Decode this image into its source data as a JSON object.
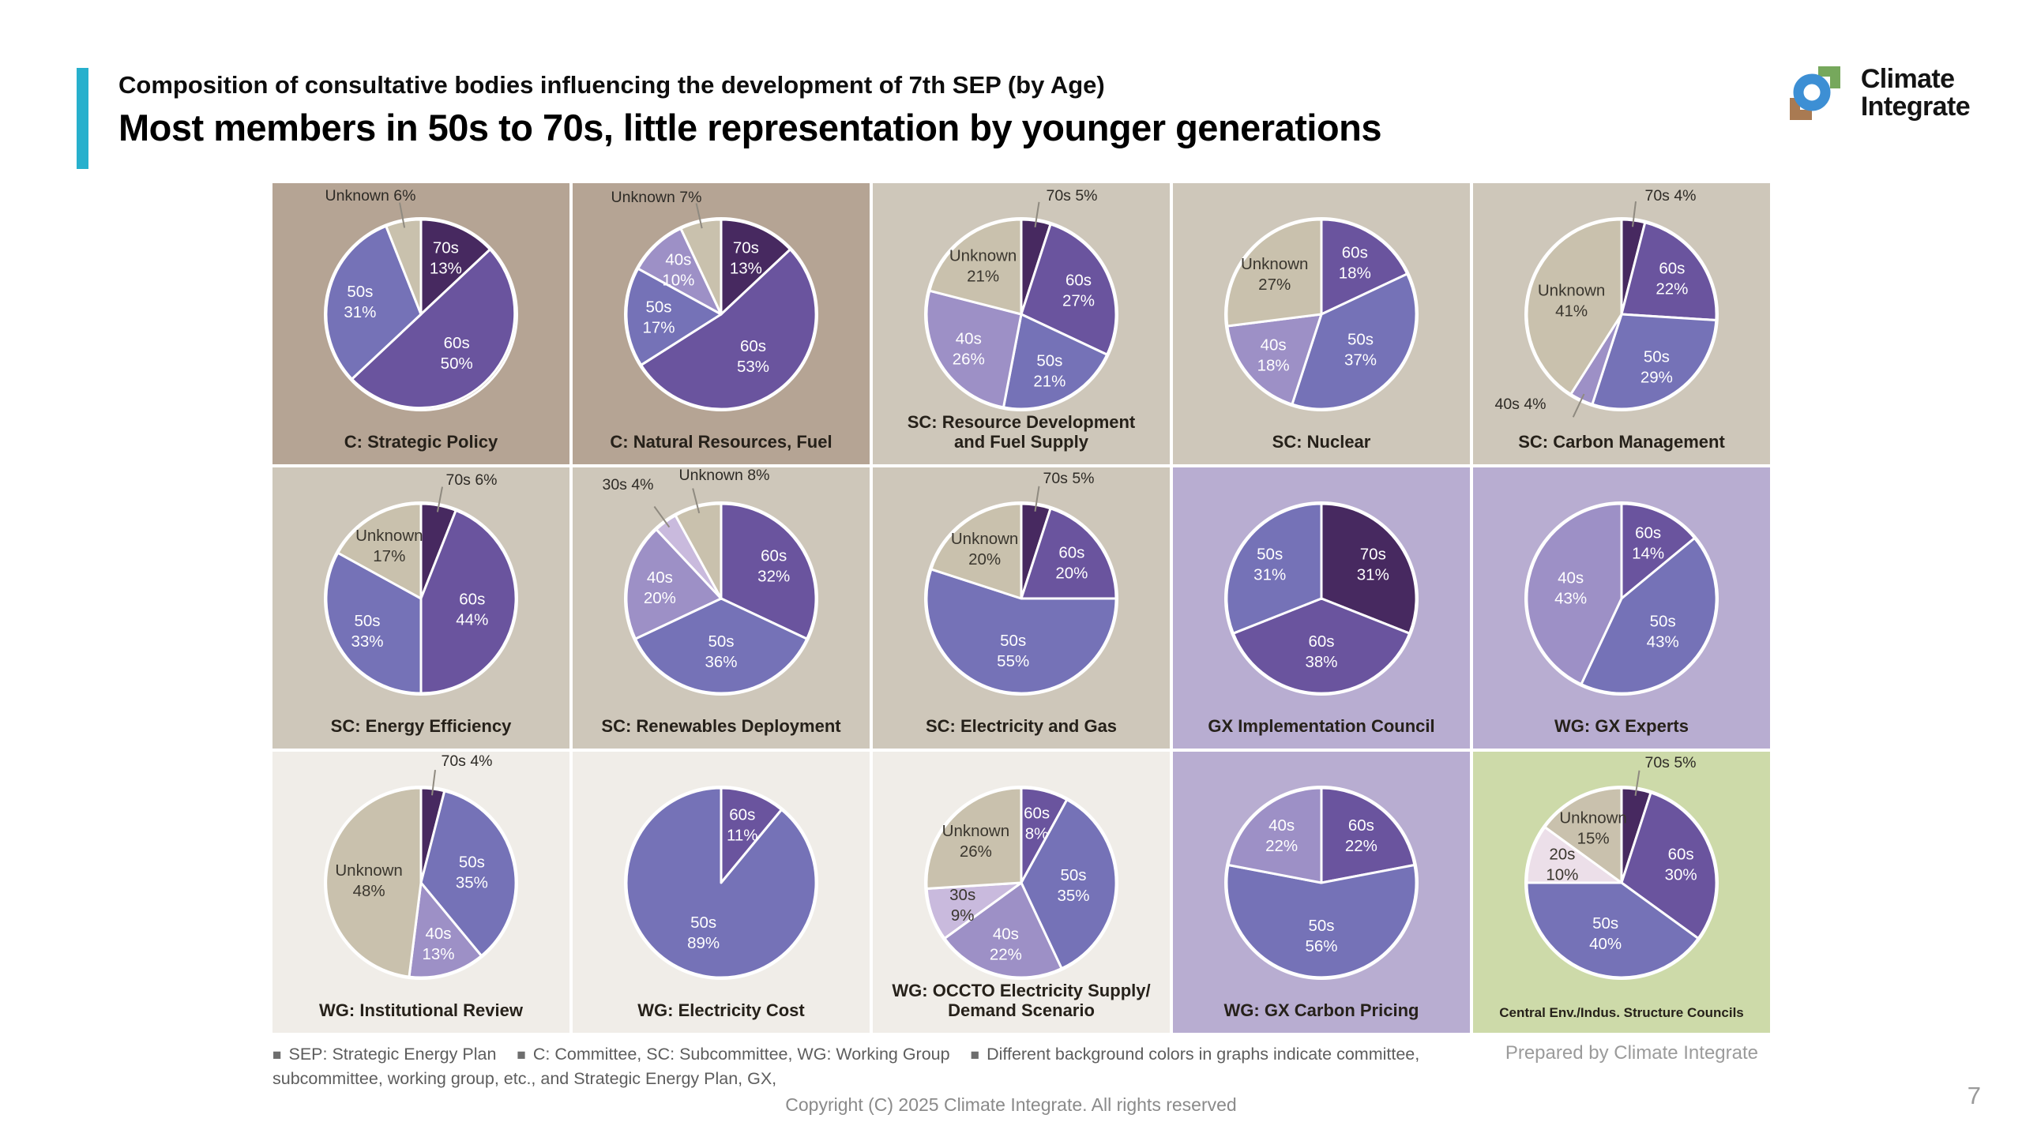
{
  "slide": {
    "kicker": "Composition of consultative bodies influencing the development of 7th SEP (by Age)",
    "title": "Most members in 50s to 70s, little representation by younger generations",
    "accent_color": "#27b0cd",
    "page_number": "7",
    "prepared_by": "Prepared by Climate Integrate",
    "copyright": "Copyright (C) 2025 Climate Integrate. All rights reserved"
  },
  "logo": {
    "line1": "Climate",
    "line2": "Integrate",
    "blue": "#3d8fd4",
    "green": "#76a85c",
    "brown": "#a97a52"
  },
  "legend_notes": [
    "SEP: Strategic Energy Plan",
    "C: Committee, SC: Subcommittee, WG: Working Group",
    "Different background colors in graphs indicate committee, subcommittee, working group, etc., and Strategic Energy Plan, GX,"
  ],
  "colors": {
    "70s": "#472960",
    "60s": "#6a549e",
    "50s": "#7572b7",
    "40s": "#9d90c6",
    "30s": "#c9badd",
    "20s": "#ecdfe9",
    "Unknown": "#c9c1ad"
  },
  "dark_label_ages": [
    "30s",
    "20s",
    "Unknown"
  ],
  "backgrounds": {
    "committee": "#b5a494",
    "subcommittee": "#cec7ba",
    "gx": "#b8add1",
    "wg": "#f0ede8",
    "central": "#cddaa9"
  },
  "chart_data": [
    {
      "type": "pie",
      "title": "C: Strategic Policy",
      "bg": "committee",
      "slices": [
        {
          "label": "70s",
          "value": 13
        },
        {
          "label": "60s",
          "value": 50
        },
        {
          "label": "50s",
          "value": 31
        },
        {
          "label": "Unknown",
          "value": 6,
          "out": [
            124,
            22
          ]
        }
      ]
    },
    {
      "type": "pie",
      "title": "C: Natural Resources, Fuel",
      "bg": "committee",
      "slices": [
        {
          "label": "70s",
          "value": 13
        },
        {
          "label": "60s",
          "value": 53
        },
        {
          "label": "50s",
          "value": 17
        },
        {
          "label": "40s",
          "value": 10
        },
        {
          "label": "Unknown",
          "value": 7,
          "out": [
            106,
            24
          ]
        }
      ]
    },
    {
      "type": "pie",
      "title": "SC: Resource Development\nand Fuel Supply",
      "bg": "subcommittee",
      "slices": [
        {
          "label": "70s",
          "value": 5,
          "out": [
            252,
            22
          ]
        },
        {
          "label": "60s",
          "value": 27
        },
        {
          "label": "50s",
          "value": 21
        },
        {
          "label": "40s",
          "value": 26
        },
        {
          "label": "Unknown",
          "value": 21
        }
      ]
    },
    {
      "type": "pie",
      "title": "SC: Nuclear",
      "bg": "subcommittee",
      "slices": [
        {
          "label": "60s",
          "value": 18
        },
        {
          "label": "50s",
          "value": 37
        },
        {
          "label": "40s",
          "value": 18
        },
        {
          "label": "Unknown",
          "value": 27
        }
      ]
    },
    {
      "type": "pie",
      "title": "SC: Carbon Management",
      "bg": "subcommittee",
      "slices": [
        {
          "label": "70s",
          "value": 4,
          "out": [
            250,
            22
          ]
        },
        {
          "label": "60s",
          "value": 22
        },
        {
          "label": "50s",
          "value": 29
        },
        {
          "label": "40s",
          "value": 4,
          "out": [
            60,
            286
          ]
        },
        {
          "label": "Unknown",
          "value": 41
        }
      ]
    },
    {
      "type": "pie",
      "title": "SC: Energy Efficiency",
      "bg": "subcommittee",
      "slices": [
        {
          "label": "70s",
          "value": 6,
          "out": [
            252,
            22
          ]
        },
        {
          "label": "60s",
          "value": 44
        },
        {
          "label": "50s",
          "value": 33
        },
        {
          "label": "Unknown",
          "value": 17
        }
      ]
    },
    {
      "type": "pie",
      "title": "SC: Renewables Deployment",
      "bg": "subcommittee",
      "slices": [
        {
          "label": "60s",
          "value": 32
        },
        {
          "label": "50s",
          "value": 36
        },
        {
          "label": "40s",
          "value": 20
        },
        {
          "label": "30s",
          "value": 4,
          "out": [
            70,
            28
          ]
        },
        {
          "label": "Unknown",
          "value": 8,
          "out": [
            192,
            16
          ]
        }
      ]
    },
    {
      "type": "pie",
      "title": "SC: Electricity and Gas",
      "bg": "subcommittee",
      "slices": [
        {
          "label": "70s",
          "value": 5,
          "out": [
            248,
            20
          ]
        },
        {
          "label": "60s",
          "value": 20
        },
        {
          "label": "50s",
          "value": 55
        },
        {
          "label": "Unknown",
          "value": 20
        }
      ]
    },
    {
      "type": "pie",
      "title": "GX Implementation Council",
      "bg": "gx",
      "slices": [
        {
          "label": "70s",
          "value": 31
        },
        {
          "label": "60s",
          "value": 38
        },
        {
          "label": "50s",
          "value": 31
        }
      ]
    },
    {
      "type": "pie",
      "title": "WG: GX Experts",
      "bg": "gx",
      "slices": [
        {
          "label": "60s",
          "value": 14
        },
        {
          "label": "50s",
          "value": 43
        },
        {
          "label": "40s",
          "value": 43
        }
      ]
    },
    {
      "type": "pie",
      "title": "WG: Institutional Review",
      "bg": "wg",
      "slices": [
        {
          "label": "70s",
          "value": 4,
          "out": [
            246,
            18
          ]
        },
        {
          "label": "50s",
          "value": 35
        },
        {
          "label": "40s",
          "value": 13
        },
        {
          "label": "Unknown",
          "value": 48
        }
      ]
    },
    {
      "type": "pie",
      "title": "WG: Electricity Cost",
      "bg": "wg",
      "slices": [
        {
          "label": "60s",
          "value": 11
        },
        {
          "label": "50s",
          "value": 89
        }
      ]
    },
    {
      "type": "pie",
      "title": "WG: OCCTO Electricity Supply/\nDemand Scenario",
      "bg": "wg",
      "slices": [
        {
          "label": "60s",
          "value": 8
        },
        {
          "label": "50s",
          "value": 35
        },
        {
          "label": "40s",
          "value": 22
        },
        {
          "label": "30s",
          "value": 9
        },
        {
          "label": "Unknown",
          "value": 26
        }
      ]
    },
    {
      "type": "pie",
      "title": "WG: GX Carbon Pricing",
      "bg": "gx",
      "slices": [
        {
          "label": "60s",
          "value": 22
        },
        {
          "label": "50s",
          "value": 56
        },
        {
          "label": "40s",
          "value": 22
        }
      ]
    },
    {
      "type": "pie",
      "title": "Central Env./Indus. Structure Councils",
      "bg": "central",
      "slices": [
        {
          "label": "70s",
          "value": 5,
          "out": [
            250,
            20
          ]
        },
        {
          "label": "60s",
          "value": 30
        },
        {
          "label": "50s",
          "value": 40
        },
        {
          "label": "20s",
          "value": 10
        },
        {
          "label": "Unknown",
          "value": 15
        }
      ]
    }
  ]
}
